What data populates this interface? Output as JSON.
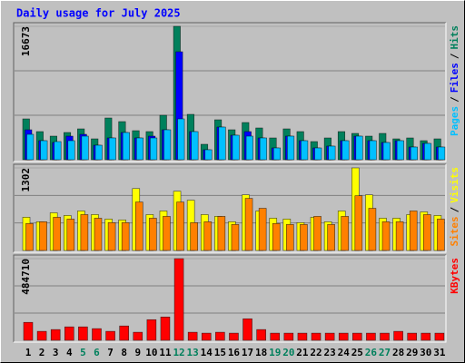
{
  "title": "Daily usage for July 2025",
  "legend_separator": "/",
  "chart_data": [
    {
      "type": "bar",
      "series": [
        {
          "name": "Hits",
          "color": "#00805c",
          "values": [
            5103,
            3515,
            2948,
            3402,
            3856,
            2608,
            5216,
            4763,
            3629,
            3515,
            5557,
            16673,
            5670,
            1928,
            4990,
            3742,
            4649,
            3969,
            2722,
            3856,
            3515,
            2268,
            2722,
            3515,
            3289,
            2948,
            3289,
            2608,
            2722,
            2381,
            2608
          ]
        },
        {
          "name": "Files",
          "color": "#0000ff",
          "values": [
            3742,
            2381,
            2155,
            2948,
            3175,
            1814,
            2722,
            3402,
            2722,
            2948,
            3742,
            13495,
            3515,
            1247,
            4082,
            3062,
            3515,
            2722,
            1474,
            2948,
            2381,
            1474,
            1701,
            2381,
            2948,
            2381,
            2155,
            2381,
            1588,
            2041,
            1588
          ]
        },
        {
          "name": "Pages",
          "color": "#00c0ff",
          "values": [
            3175,
            2381,
            2268,
            2381,
            2948,
            1814,
            2722,
            3402,
            2722,
            2722,
            3742,
            5103,
            3515,
            1247,
            4082,
            3062,
            2948,
            2722,
            1474,
            2948,
            2381,
            1474,
            1701,
            2381,
            2948,
            2381,
            2155,
            2381,
            1588,
            2041,
            1588
          ]
        }
      ],
      "ylim": [
        0,
        16673
      ],
      "yticks": [
        16673
      ]
    },
    {
      "type": "bar",
      "series": [
        {
          "name": "Visits",
          "color": "#ffff00",
          "values": [
            524,
            453,
            594,
            552,
            623,
            566,
            495,
            481,
            976,
            566,
            623,
            934,
            792,
            566,
            538,
            453,
            877,
            623,
            509,
            495,
            439,
            524,
            453,
            623,
            1302,
            877,
            509,
            509,
            566,
            608,
            552
          ]
        },
        {
          "name": "Sites",
          "color": "#ff8000",
          "values": [
            425,
            453,
            524,
            495,
            566,
            509,
            439,
            439,
            764,
            509,
            538,
            764,
            439,
            453,
            538,
            410,
            821,
            665,
            425,
            410,
            410,
            538,
            410,
            538,
            863,
            665,
            453,
            453,
            623,
            566,
            495
          ]
        }
      ],
      "ylim": [
        0,
        1302
      ],
      "yticks": [
        1302
      ]
    },
    {
      "type": "bar",
      "series": [
        {
          "name": "KBytes",
          "color": "#ff0000",
          "values": [
            106530,
            53260,
            63914,
            79894,
            79894,
            69241,
            53260,
            85219,
            47936,
            122502,
            138478,
            484710,
            47936,
            42611,
            47936,
            42611,
            127827,
            63914,
            42611,
            42611,
            42611,
            42611,
            42611,
            42611,
            42611,
            42611,
            42611,
            53260,
            42611,
            42611,
            42611
          ]
        }
      ],
      "ylim": [
        0,
        484710
      ],
      "yticks": [
        484710
      ],
      "categories": [
        "1",
        "2",
        "3",
        "4",
        "5",
        "6",
        "7",
        "8",
        "9",
        "10",
        "11",
        "12",
        "13",
        "14",
        "15",
        "16",
        "17",
        "18",
        "19",
        "20",
        "21",
        "22",
        "23",
        "24",
        "25",
        "26",
        "27",
        "28",
        "29",
        "30",
        "31"
      ],
      "label_colors": [
        "#000000",
        "#000000",
        "#000000",
        "#000000",
        "#00805c",
        "#00805c",
        "#000000",
        "#000000",
        "#000000",
        "#000000",
        "#000000",
        "#00805c",
        "#00805c",
        "#000000",
        "#000000",
        "#000000",
        "#000000",
        "#000000",
        "#00805c",
        "#00805c",
        "#000000",
        "#000000",
        "#000000",
        "#000000",
        "#000000",
        "#00805c",
        "#00805c",
        "#000000",
        "#000000",
        "#000000",
        "#000000"
      ]
    }
  ]
}
